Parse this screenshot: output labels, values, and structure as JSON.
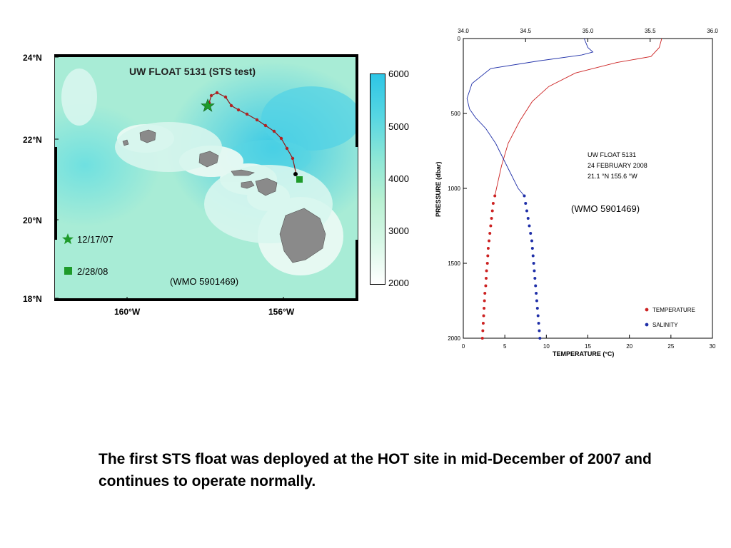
{
  "map": {
    "title": "UW FLOAT 5131 (STS test)",
    "wmo_label": "(WMO 5901469)",
    "lat_labels": [
      "24°N",
      "22°N",
      "20°N",
      "18°N"
    ],
    "lon_labels": [
      "160°W",
      "156°W"
    ],
    "legend": [
      {
        "label": "12/17/07",
        "marker": "star-icon",
        "color": "#1e9a2a"
      },
      {
        "label": "2/28/08",
        "marker": "square-icon",
        "color": "#1e9a2a"
      }
    ],
    "colorbar_ticks": [
      "6000",
      "5000",
      "4000",
      "3000",
      "2000"
    ],
    "colors": {
      "ocean_light": "#a8ecd6",
      "ocean_deep": "#4fd3e8",
      "shelf": "#eafaf4",
      "land": "#8a8a8a",
      "track": "#b22222"
    }
  },
  "caption": "The first STS float was deployed at the HOT site in mid-December of 2007 and continues to operate normally.",
  "chart_data": {
    "type": "line",
    "annotation_lines": [
      "UW FLOAT 5131",
      "24 FEBRUARY 2008",
      "21.1 °N   155.6 °W"
    ],
    "wmo_label": "(WMO 5901469)",
    "xlabel": "TEMPERATURE (°C)",
    "ylabel": "PRESSURE (dbar)",
    "x_ticks": [
      "0",
      "5",
      "10",
      "15",
      "20",
      "25",
      "30"
    ],
    "x_top_ticks": [
      "34.0",
      "34.5",
      "35.0",
      "35.5",
      "36.0"
    ],
    "y_ticks": [
      "0",
      "500",
      "1000",
      "1500",
      "2000"
    ],
    "xlim": [
      0,
      30
    ],
    "x_top_lim": [
      34.0,
      36.0
    ],
    "ylim": [
      0,
      2000
    ],
    "y_inverted": true,
    "legend_position": "bottom-right",
    "series": [
      {
        "name": "TEMPERATURE",
        "color": "#cc2222",
        "axis": "bottom",
        "line": [
          [
            23.9,
            0
          ],
          [
            23.6,
            60
          ],
          [
            22.6,
            120
          ],
          [
            18.5,
            160
          ],
          [
            13.5,
            230
          ],
          [
            10.3,
            320
          ],
          [
            8.3,
            420
          ],
          [
            6.8,
            550
          ],
          [
            5.4,
            700
          ],
          [
            4.6,
            850
          ],
          [
            4.0,
            1000
          ],
          [
            3.8,
            1050
          ]
        ],
        "points": [
          [
            3.8,
            1050
          ],
          [
            3.6,
            1100
          ],
          [
            3.5,
            1150
          ],
          [
            3.4,
            1200
          ],
          [
            3.3,
            1250
          ],
          [
            3.2,
            1300
          ],
          [
            3.1,
            1350
          ],
          [
            3.0,
            1400
          ],
          [
            2.95,
            1450
          ],
          [
            2.9,
            1500
          ],
          [
            2.8,
            1550
          ],
          [
            2.75,
            1600
          ],
          [
            2.7,
            1650
          ],
          [
            2.6,
            1700
          ],
          [
            2.55,
            1750
          ],
          [
            2.5,
            1800
          ],
          [
            2.45,
            1850
          ],
          [
            2.4,
            1900
          ],
          [
            2.35,
            1950
          ],
          [
            2.3,
            2000
          ]
        ]
      },
      {
        "name": "SALINITY",
        "color": "#1f2fa8",
        "axis": "top",
        "line": [
          [
            34.97,
            0
          ],
          [
            35.0,
            60
          ],
          [
            35.04,
            90
          ],
          [
            34.95,
            110
          ],
          [
            34.6,
            150
          ],
          [
            34.22,
            200
          ],
          [
            34.07,
            300
          ],
          [
            34.03,
            400
          ],
          [
            34.05,
            470
          ],
          [
            34.1,
            530
          ],
          [
            34.18,
            600
          ],
          [
            34.26,
            700
          ],
          [
            34.32,
            800
          ],
          [
            34.38,
            900
          ],
          [
            34.44,
            1000
          ],
          [
            34.49,
            1050
          ]
        ],
        "points": [
          [
            34.49,
            1050
          ],
          [
            34.5,
            1100
          ],
          [
            34.51,
            1150
          ],
          [
            34.52,
            1200
          ],
          [
            34.53,
            1250
          ],
          [
            34.54,
            1300
          ],
          [
            34.55,
            1350
          ],
          [
            34.555,
            1400
          ],
          [
            34.56,
            1450
          ],
          [
            34.565,
            1500
          ],
          [
            34.57,
            1550
          ],
          [
            34.575,
            1600
          ],
          [
            34.58,
            1650
          ],
          [
            34.585,
            1700
          ],
          [
            34.59,
            1750
          ],
          [
            34.595,
            1800
          ],
          [
            34.6,
            1850
          ],
          [
            34.605,
            1900
          ],
          [
            34.61,
            1950
          ],
          [
            34.615,
            2000
          ]
        ]
      }
    ]
  }
}
